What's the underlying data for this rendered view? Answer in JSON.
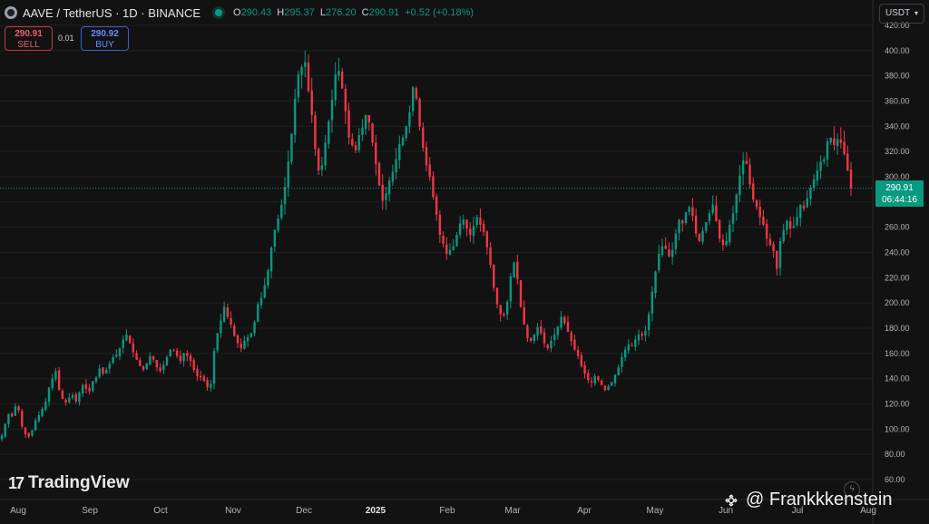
{
  "header": {
    "title": "AAVE / TetherUS · 1D · BINANCE",
    "open_label": "O",
    "open": "290.43",
    "high_label": "H",
    "high": "295.37",
    "low_label": "L",
    "low": "276.20",
    "close_label": "C",
    "close": "290.91",
    "change": "+0.52 (+0.18%)",
    "status_color": "#089981"
  },
  "trade": {
    "sell_price": "290.91",
    "sell_label": "SELL",
    "spread": "0.01",
    "buy_price": "290.92",
    "buy_label": "BUY"
  },
  "currency": {
    "label": "USDT"
  },
  "last_price": {
    "price": "290.91",
    "countdown": "06:44:16"
  },
  "branding": {
    "logo_text": "TradingView",
    "logo_mark": "17"
  },
  "watermark": {
    "text": "@ Frankkkenstein"
  },
  "colors": {
    "up": "#089981",
    "down": "#f23645",
    "background": "#121212",
    "grid": "#1f1f1f"
  },
  "chart_data": {
    "type": "candlestick",
    "symbol": "AAVEUSDT",
    "interval": "1D",
    "y_axis": {
      "min": 60,
      "max": 420,
      "ticks": [
        60,
        80,
        100,
        120,
        140,
        160,
        180,
        200,
        220,
        240,
        260,
        280,
        300,
        320,
        340,
        360,
        380,
        400,
        420
      ],
      "tick_labels": [
        "60.00",
        "80.00",
        "100.00",
        "120.00",
        "140.00",
        "160.00",
        "180.00",
        "200.00",
        "220.00",
        "240.00",
        "260.00",
        "280.00",
        "300.00",
        "320.00",
        "340.00",
        "360.00",
        "380.00",
        "400.00",
        "420.00"
      ]
    },
    "x_axis": {
      "labels": [
        "Aug",
        "Sep",
        "Oct",
        "Nov",
        "Dec",
        "2025",
        "Feb",
        "Mar",
        "Apr",
        "May",
        "Jun",
        "Jul",
        "Aug"
      ]
    },
    "price_line": 290.91,
    "closes": [
      95,
      104,
      112,
      110,
      118,
      115,
      102,
      96,
      94,
      99,
      107,
      111,
      116,
      122,
      133,
      140,
      146,
      131,
      124,
      121,
      125,
      127,
      122,
      129,
      135,
      132,
      130,
      138,
      141,
      148,
      144,
      147,
      152,
      157,
      159,
      164,
      171,
      175,
      168,
      161,
      155,
      150,
      147,
      152,
      158,
      155,
      149,
      146,
      151,
      157,
      163,
      162,
      158,
      154,
      160,
      158,
      154,
      147,
      142,
      141,
      138,
      133,
      136,
      162,
      176,
      186,
      197,
      189,
      183,
      174,
      168,
      164,
      170,
      173,
      176,
      185,
      199,
      204,
      214,
      226,
      244,
      258,
      267,
      278,
      292,
      312,
      334,
      362,
      381,
      387,
      391,
      368,
      349,
      322,
      305,
      309,
      327,
      344,
      361,
      381,
      384,
      370,
      352,
      331,
      325,
      321,
      333,
      339,
      349,
      343,
      327,
      310,
      293,
      281,
      287,
      297,
      304,
      314,
      326,
      331,
      340,
      351,
      371,
      362,
      340,
      323,
      309,
      300,
      284,
      270,
      254,
      247,
      239,
      242,
      245,
      254,
      263,
      266,
      259,
      254,
      261,
      268,
      262,
      256,
      244,
      230,
      212,
      199,
      191,
      190,
      201,
      221,
      232,
      219,
      197,
      183,
      172,
      170,
      175,
      181,
      176,
      168,
      164,
      170,
      175,
      181,
      189,
      184,
      177,
      170,
      163,
      158,
      150,
      144,
      139,
      137,
      142,
      139,
      135,
      131,
      134,
      137,
      143,
      149,
      157,
      163,
      167,
      166,
      171,
      175,
      174,
      178,
      191,
      209,
      225,
      239,
      245,
      243,
      237,
      242,
      255,
      266,
      263,
      272,
      276,
      269,
      255,
      249,
      257,
      264,
      271,
      278,
      265,
      251,
      246,
      249,
      262,
      271,
      286,
      301,
      313,
      310,
      294,
      282,
      276,
      268,
      262,
      251,
      246,
      241,
      227,
      249,
      258,
      265,
      259,
      261,
      268,
      278,
      275,
      283,
      291,
      298,
      305,
      312,
      314,
      328,
      331,
      325,
      330,
      327,
      318,
      305,
      290.91
    ]
  }
}
